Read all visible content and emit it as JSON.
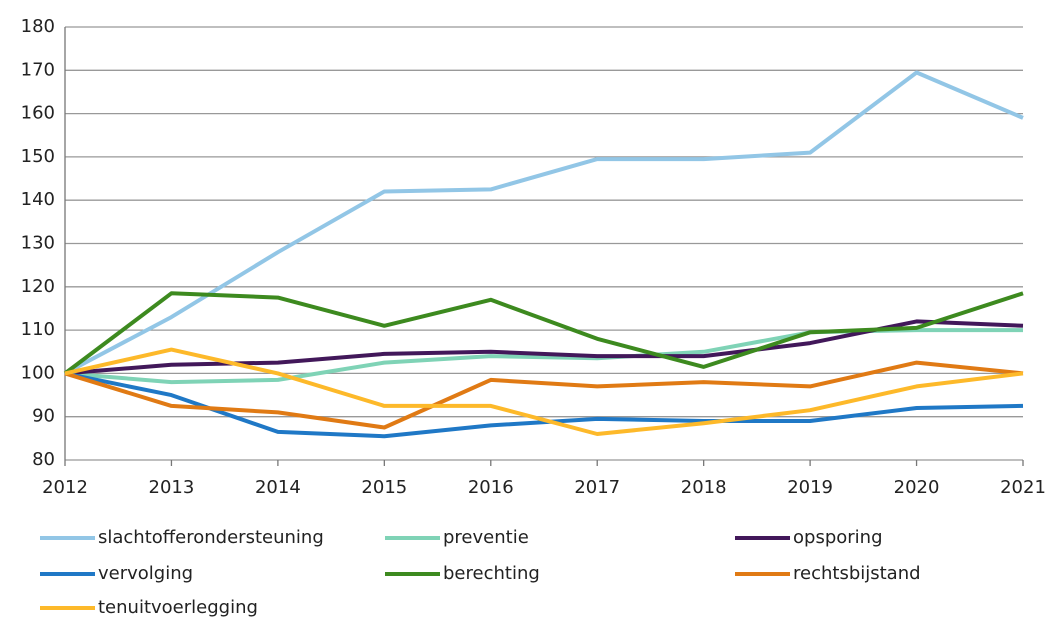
{
  "chart_data": {
    "type": "line",
    "x": [
      2012,
      2013,
      2014,
      2015,
      2016,
      2017,
      2018,
      2019,
      2020,
      2021
    ],
    "xlim": [
      2012,
      2021
    ],
    "xticks": [
      2012,
      2013,
      2014,
      2015,
      2016,
      2017,
      2018,
      2019,
      2020,
      2021
    ],
    "ylim": [
      80,
      180
    ],
    "yticks": [
      80,
      90,
      100,
      110,
      120,
      130,
      140,
      150,
      160,
      170,
      180
    ],
    "grid": true,
    "legend": "bottom",
    "series": [
      {
        "name": "slachtofferondersteuning",
        "color": "#92c6e6",
        "values": [
          100,
          113,
          128,
          142,
          142.5,
          149.5,
          149.5,
          151,
          169.5,
          159
        ]
      },
      {
        "name": "preventie",
        "color": "#7fd3b6",
        "values": [
          100,
          98,
          98.5,
          102.5,
          104,
          103.5,
          105,
          109.5,
          110,
          110
        ]
      },
      {
        "name": "opsporing",
        "color": "#42185a",
        "values": [
          100,
          102,
          102.5,
          104.5,
          105,
          104,
          104,
          107,
          112,
          111
        ]
      },
      {
        "name": "vervolging",
        "color": "#1f78c6",
        "values": [
          100,
          95,
          86.5,
          85.5,
          88,
          89.5,
          89,
          89,
          92,
          92.5
        ]
      },
      {
        "name": "berechting",
        "color": "#3d8a1f",
        "values": [
          100,
          118.5,
          117.5,
          111,
          117,
          108,
          101.5,
          109.5,
          110.5,
          118.5
        ]
      },
      {
        "name": "rechtsbijstand",
        "color": "#e07a14",
        "values": [
          100,
          92.5,
          91,
          87.5,
          98.5,
          97,
          98,
          97,
          102.5,
          100
        ]
      },
      {
        "name": "tenuitvoerlegging",
        "color": "#fdb92a",
        "values": [
          100,
          105.5,
          100,
          92.5,
          92.5,
          86,
          88.5,
          91.5,
          97,
          100
        ]
      }
    ]
  }
}
